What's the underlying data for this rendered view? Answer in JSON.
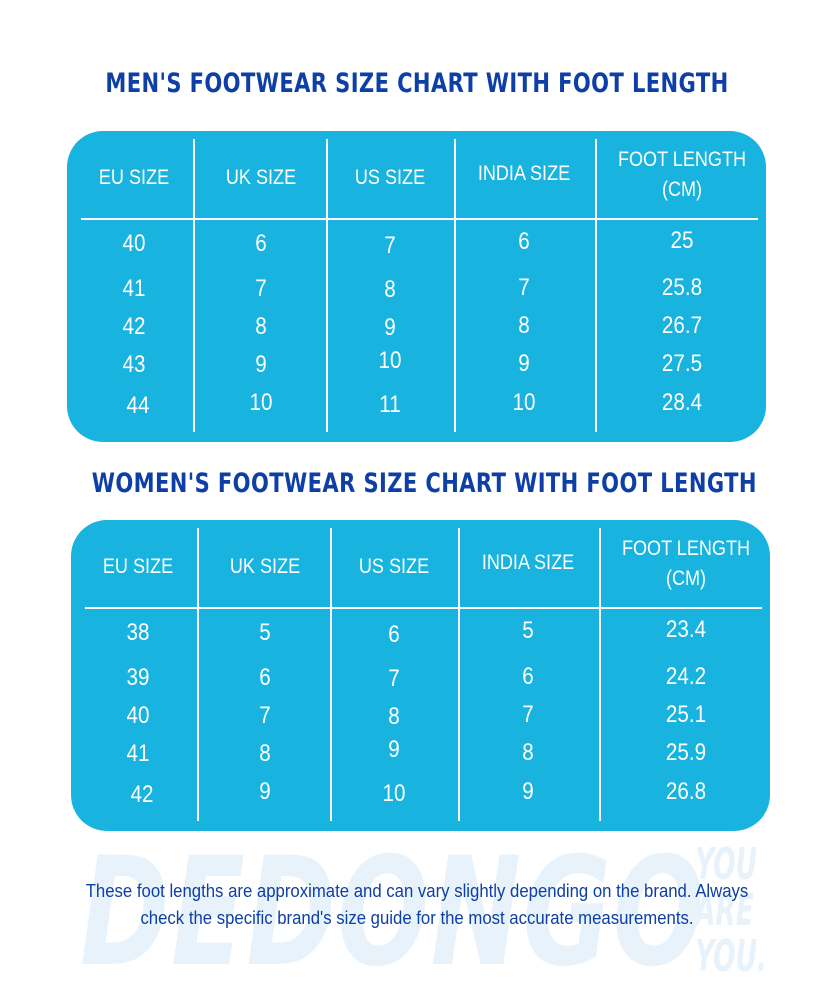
{
  "men": {
    "title": "MEN'S FOOTWEAR SIZE CHART WITH FOOT LENGTH",
    "headers": [
      "EU SIZE",
      "UK SIZE",
      "US SIZE",
      "INDIA SIZE",
      "FOOT LENGTH (CM)"
    ],
    "header_lines": {
      "foot_length_1": "FOOT LENGTH",
      "foot_length_2": "(CM)"
    },
    "rows": [
      [
        "40",
        "6",
        "7",
        "6",
        "25"
      ],
      [
        "41",
        "7",
        "8",
        "7",
        "25.8"
      ],
      [
        "42",
        "8",
        "9",
        "8",
        "26.7"
      ],
      [
        "43",
        "9",
        "10",
        "9",
        "27.5"
      ],
      [
        "44",
        "10",
        "11",
        "10",
        "28.4"
      ]
    ]
  },
  "women": {
    "title": "WOMEN'S FOOTWEAR SIZE CHART WITH FOOT LENGTH",
    "headers": [
      "EU SIZE",
      "UK SIZE",
      "US SIZE",
      "INDIA SIZE",
      "FOOT LENGTH (CM)"
    ],
    "header_lines": {
      "foot_length_1": "FOOT LENGTH",
      "foot_length_2": "(CM)"
    },
    "rows": [
      [
        "38",
        "5",
        "6",
        "5",
        "23.4"
      ],
      [
        "39",
        "6",
        "7",
        "6",
        "24.2"
      ],
      [
        "40",
        "7",
        "8",
        "7",
        "25.1"
      ],
      [
        "41",
        "8",
        "9",
        "8",
        "25.9"
      ],
      [
        "42",
        "9",
        "10",
        "9",
        "26.8"
      ]
    ]
  },
  "watermark": {
    "brand": "DEDONGO",
    "tagline": [
      "YOU",
      "ARE",
      "YOU."
    ]
  },
  "note": "These foot lengths are approximate and can vary slightly depending on the brand. Always check the specific brand's size guide for the most accurate measurements.",
  "colors": {
    "panel": "#18b3df",
    "title": "#0d3fa6",
    "text": "#ffffff",
    "watermark": "#e8f2fb"
  }
}
